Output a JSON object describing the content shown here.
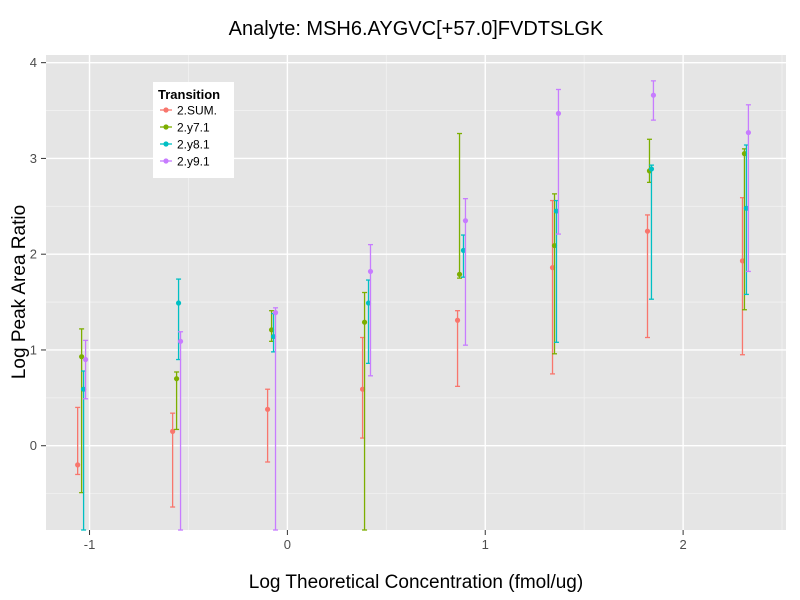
{
  "chart_data": {
    "type": "scatter",
    "title": "Analyte: MSH6.AYGVC[+57.0]FVDTSLGK",
    "xlabel": "Log Theoretical Concentration (fmol/ug)",
    "ylabel": "Log Peak Area Ratio",
    "xlim": [
      -1.22,
      2.52
    ],
    "ylim": [
      -0.88,
      4.08
    ],
    "x_ticks": [
      -1,
      0,
      1,
      2
    ],
    "x_tick_labels": [
      "-1",
      "0",
      "1",
      "2"
    ],
    "y_ticks": [
      0,
      1,
      2,
      3,
      4
    ],
    "y_tick_labels": [
      "0",
      "1",
      "2",
      "3",
      "4"
    ],
    "grid": true,
    "legend": {
      "title": "Transition",
      "position": "top-left"
    },
    "series": [
      {
        "name": "2.SUM.",
        "color": "#F8766D",
        "points": [
          {
            "x": -1.06,
            "y": -0.2,
            "lo": -0.3,
            "hi": 0.4
          },
          {
            "x": -0.58,
            "y": 0.15,
            "lo": -0.64,
            "hi": 0.34
          },
          {
            "x": -0.1,
            "y": 0.38,
            "lo": -0.17,
            "hi": 0.59
          },
          {
            "x": 0.38,
            "y": 0.59,
            "lo": 0.08,
            "hi": 1.13
          },
          {
            "x": 0.86,
            "y": 1.31,
            "lo": 0.62,
            "hi": 1.41
          },
          {
            "x": 1.34,
            "y": 1.86,
            "lo": 0.75,
            "hi": 2.56
          },
          {
            "x": 1.82,
            "y": 2.24,
            "lo": 1.13,
            "hi": 2.41
          },
          {
            "x": 2.3,
            "y": 1.93,
            "lo": 0.95,
            "hi": 2.59
          }
        ]
      },
      {
        "name": "2.y7.1",
        "color": "#7CAE00",
        "points": [
          {
            "x": -1.04,
            "y": 0.93,
            "lo": -0.49,
            "hi": 1.22
          },
          {
            "x": -0.56,
            "y": 0.7,
            "lo": 0.17,
            "hi": 0.77
          },
          {
            "x": -0.08,
            "y": 1.21,
            "lo": 1.09,
            "hi": 1.41
          },
          {
            "x": 0.39,
            "y": 1.29,
            "lo": -0.88,
            "hi": 1.6
          },
          {
            "x": 0.87,
            "y": 1.79,
            "lo": 1.75,
            "hi": 3.26
          },
          {
            "x": 1.35,
            "y": 2.09,
            "lo": 0.96,
            "hi": 2.63
          },
          {
            "x": 1.83,
            "y": 2.87,
            "lo": 2.75,
            "hi": 3.2
          },
          {
            "x": 2.31,
            "y": 3.05,
            "lo": 1.42,
            "hi": 3.1
          }
        ]
      },
      {
        "name": "2.y8.1",
        "color": "#00BFC4",
        "points": [
          {
            "x": -1.03,
            "y": 0.59,
            "lo": -0.88,
            "hi": 0.78
          },
          {
            "x": -0.55,
            "y": 1.49,
            "lo": 0.9,
            "hi": 1.74
          },
          {
            "x": -0.07,
            "y": 1.14,
            "lo": 0.98,
            "hi": 1.38
          },
          {
            "x": 0.41,
            "y": 1.49,
            "lo": 0.86,
            "hi": 1.73
          },
          {
            "x": 0.89,
            "y": 2.04,
            "lo": 1.76,
            "hi": 2.2
          },
          {
            "x": 1.36,
            "y": 2.45,
            "lo": 1.08,
            "hi": 2.56
          },
          {
            "x": 1.84,
            "y": 2.89,
            "lo": 1.53,
            "hi": 2.93
          },
          {
            "x": 2.32,
            "y": 2.48,
            "lo": 1.58,
            "hi": 3.14
          }
        ]
      },
      {
        "name": "2.y9.1",
        "color": "#C77CFF",
        "points": [
          {
            "x": -1.02,
            "y": 0.9,
            "lo": 0.49,
            "hi": 1.1
          },
          {
            "x": -0.54,
            "y": 1.09,
            "lo": -0.88,
            "hi": 1.19
          },
          {
            "x": -0.06,
            "y": 1.39,
            "lo": -0.88,
            "hi": 1.44
          },
          {
            "x": 0.42,
            "y": 1.82,
            "lo": 0.73,
            "hi": 2.1
          },
          {
            "x": 0.9,
            "y": 2.35,
            "lo": 1.05,
            "hi": 2.58
          },
          {
            "x": 1.37,
            "y": 3.47,
            "lo": 2.21,
            "hi": 3.72
          },
          {
            "x": 1.85,
            "y": 3.66,
            "lo": 3.4,
            "hi": 3.81
          },
          {
            "x": 2.33,
            "y": 3.27,
            "lo": 1.82,
            "hi": 3.56
          }
        ]
      }
    ]
  }
}
